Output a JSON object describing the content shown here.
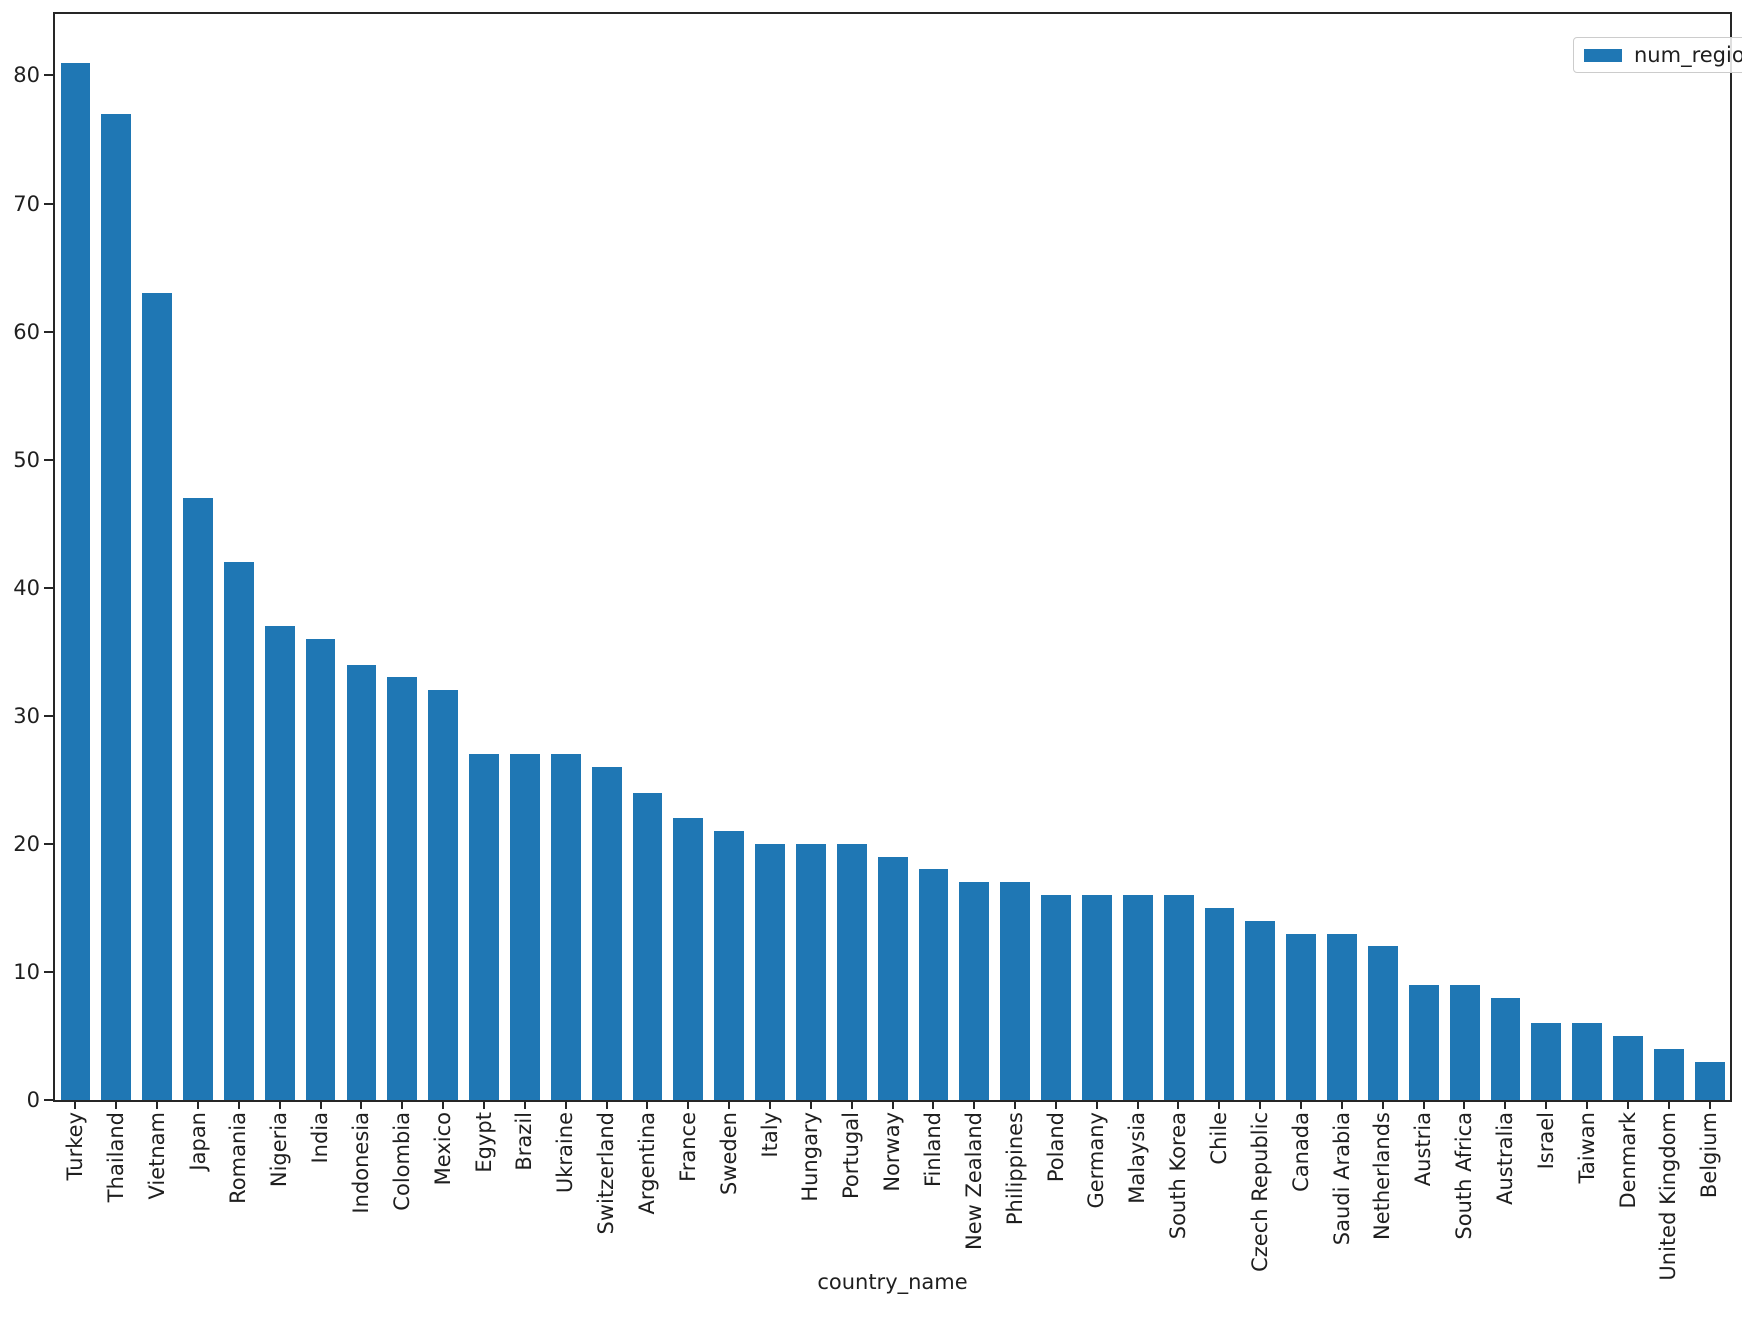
{
  "chart_data": {
    "type": "bar",
    "title": "",
    "xlabel": "country_name",
    "ylabel": "",
    "legend_label": "num_regions",
    "legend_position": "upper right",
    "bar_color": "#1f77b4",
    "axis_color": "#262626",
    "grid": false,
    "ylim": [
      0,
      84.8
    ],
    "yticks": [
      0,
      10,
      20,
      30,
      40,
      50,
      60,
      70,
      80
    ],
    "categories": [
      "Turkey",
      "Thailand",
      "Vietnam",
      "Japan",
      "Romania",
      "Nigeria",
      "India",
      "Indonesia",
      "Colombia",
      "Mexico",
      "Egypt",
      "Brazil",
      "Ukraine",
      "Switzerland",
      "Argentina",
      "France",
      "Sweden",
      "Italy",
      "Hungary",
      "Portugal",
      "Norway",
      "Finland",
      "New Zealand",
      "Philippines",
      "Poland",
      "Germany",
      "Malaysia",
      "South Korea",
      "Chile",
      "Czech Republic",
      "Canada",
      "Saudi Arabia",
      "Netherlands",
      "Austria",
      "South Africa",
      "Australia",
      "Israel",
      "Taiwan",
      "Denmark",
      "United Kingdom",
      "Belgium"
    ],
    "values": [
      81,
      77,
      63,
      47,
      42,
      37,
      36,
      34,
      33,
      32,
      27,
      27,
      27,
      26,
      24,
      22,
      21,
      20,
      20,
      20,
      19,
      18,
      17,
      17,
      16,
      16,
      16,
      16,
      15,
      14,
      13,
      13,
      12,
      9,
      9,
      8,
      6,
      6,
      5,
      4,
      3
    ]
  }
}
